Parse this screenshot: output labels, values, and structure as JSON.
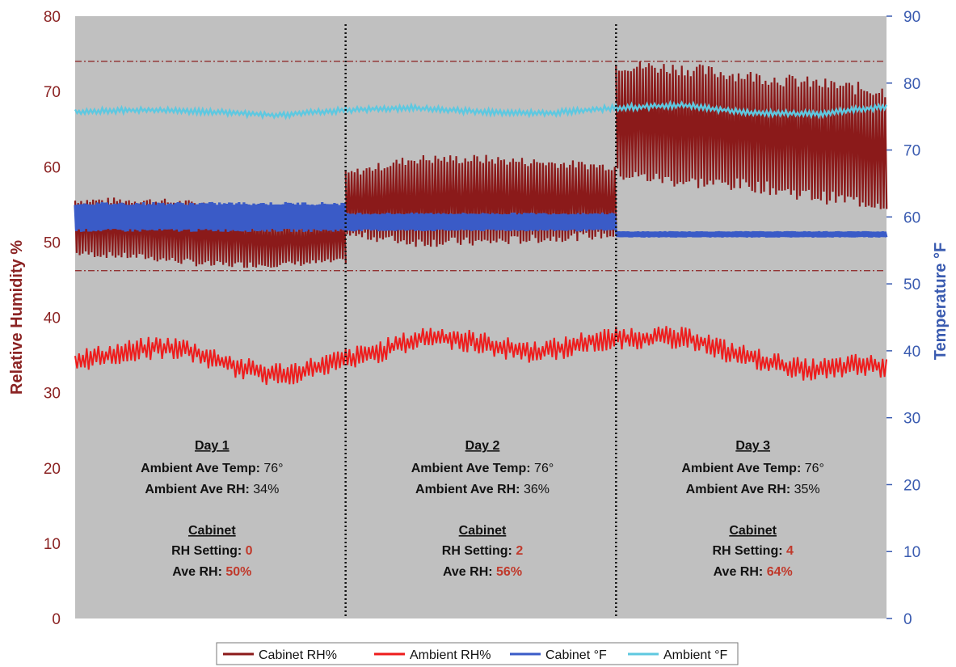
{
  "chart_data": {
    "type": "line",
    "x_unit_labels": [],
    "y_left": {
      "label": "Relative Humidity %",
      "range": [
        0,
        80
      ],
      "ticks": [
        "0",
        "10",
        "20",
        "30",
        "40",
        "50",
        "60",
        "70",
        "80"
      ]
    },
    "y_right": {
      "label": "Temperature °F",
      "range": [
        0,
        90
      ],
      "ticks": [
        "0",
        "10",
        "20",
        "30",
        "40",
        "50",
        "60",
        "70",
        "80",
        "90"
      ]
    },
    "x_range": [
      0,
      3
    ],
    "day_dividers": [
      1,
      2
    ],
    "limit_lines_rh": [
      74,
      46.2
    ],
    "grid": false,
    "plot_background": "#c0c0c0",
    "legend_position": "bottom",
    "series": [
      {
        "name": "Cabinet RH%",
        "axis": "left",
        "color": "#8b1a1a",
        "style": "band",
        "days": [
          {
            "low": [
              48.5,
              48.0,
              47.0,
              47.0,
              47.5
            ],
            "high": [
              55.5,
              55.5,
              55.0,
              53.5,
              53.5
            ]
          },
          {
            "low": [
              51.0,
              50.0,
              50.0,
              50.5,
              51.0
            ],
            "high": [
              59.0,
              61.0,
              61.0,
              60.5,
              60.0
            ]
          },
          {
            "low": [
              59.0,
              58.0,
              57.5,
              56.0,
              55.0
            ],
            "high": [
              73.5,
              73.0,
              72.0,
              71.0,
              70.0
            ]
          }
        ]
      },
      {
        "name": "Ambient RH%",
        "axis": "left",
        "color": "#ee1c1c",
        "x": [
          0,
          0.1,
          0.2,
          0.3,
          0.4,
          0.5,
          0.6,
          0.7,
          0.8,
          0.9,
          1.0,
          1.1,
          1.2,
          1.3,
          1.4,
          1.5,
          1.6,
          1.7,
          1.8,
          1.9,
          2.0,
          2.1,
          2.2,
          2.3,
          2.4,
          2.5,
          2.6,
          2.7,
          2.8,
          2.9,
          3.0
        ],
        "values": [
          34.3,
          34.8,
          35.5,
          36.0,
          35.8,
          34.6,
          33.4,
          32.5,
          32.6,
          33.4,
          34.4,
          35.2,
          36.3,
          37.4,
          37.2,
          36.6,
          35.8,
          35.4,
          35.9,
          36.8,
          37.2,
          37.3,
          37.3,
          37.0,
          35.6,
          34.6,
          33.7,
          33.0,
          33.2,
          33.7,
          33.3
        ],
        "noise": 1.2
      },
      {
        "name": "Cabinet °F",
        "axis": "right",
        "color": "#3a5bc7",
        "style": "band",
        "days": [
          {
            "low": [
              58.0,
              58.0,
              58.0,
              58.0,
              58.0
            ],
            "high": [
              62.0,
              62.0,
              62.0,
              62.0,
              62.0
            ]
          },
          {
            "low": [
              58.0,
              58.0,
              58.0,
              58.0,
              58.0
            ],
            "high": [
              60.5,
              60.5,
              60.5,
              60.5,
              60.5
            ]
          },
          {
            "low": [
              57.0,
              57.0,
              57.0,
              57.0,
              57.0
            ],
            "high": [
              57.8,
              57.8,
              57.8,
              57.8,
              57.8
            ]
          }
        ]
      },
      {
        "name": "Ambient °F",
        "axis": "right",
        "color": "#5ec8e0",
        "x": [
          0,
          0.25,
          0.5,
          0.75,
          1.0,
          1.25,
          1.5,
          1.75,
          2.0,
          2.25,
          2.5,
          2.75,
          3.0
        ],
        "values": [
          75.7,
          76.0,
          75.7,
          75.2,
          76.0,
          76.3,
          75.7,
          75.5,
          76.3,
          76.7,
          75.5,
          75.4,
          76.5
        ],
        "noise": 0.35
      }
    ],
    "annotations": [
      {
        "day_title": "Day 1",
        "amb_temp_label": "Ambient Ave Temp:",
        "amb_temp_value": "76°",
        "amb_rh_label": "Ambient Ave RH:",
        "amb_rh_value": "34%",
        "cabinet_title": "Cabinet",
        "rh_setting_label": "RH Setting:",
        "rh_setting_value": "0",
        "ave_rh_label": "Ave RH:",
        "ave_rh_value": "50%"
      },
      {
        "day_title": "Day 2",
        "amb_temp_label": "Ambient Ave Temp:",
        "amb_temp_value": "76°",
        "amb_rh_label": "Ambient Ave RH:",
        "amb_rh_value": "36%",
        "cabinet_title": "Cabinet",
        "rh_setting_label": "RH Setting:",
        "rh_setting_value": "2",
        "ave_rh_label": "Ave RH:",
        "ave_rh_value": "56%"
      },
      {
        "day_title": "Day 3",
        "amb_temp_label": "Ambient Ave Temp:",
        "amb_temp_value": "76°",
        "amb_rh_label": "Ambient Ave RH:",
        "amb_rh_value": "35%",
        "cabinet_title": "Cabinet",
        "rh_setting_label": "RH Setting:",
        "rh_setting_value": "4",
        "ave_rh_label": "Ave RH:",
        "ave_rh_value": "64%"
      }
    ]
  }
}
